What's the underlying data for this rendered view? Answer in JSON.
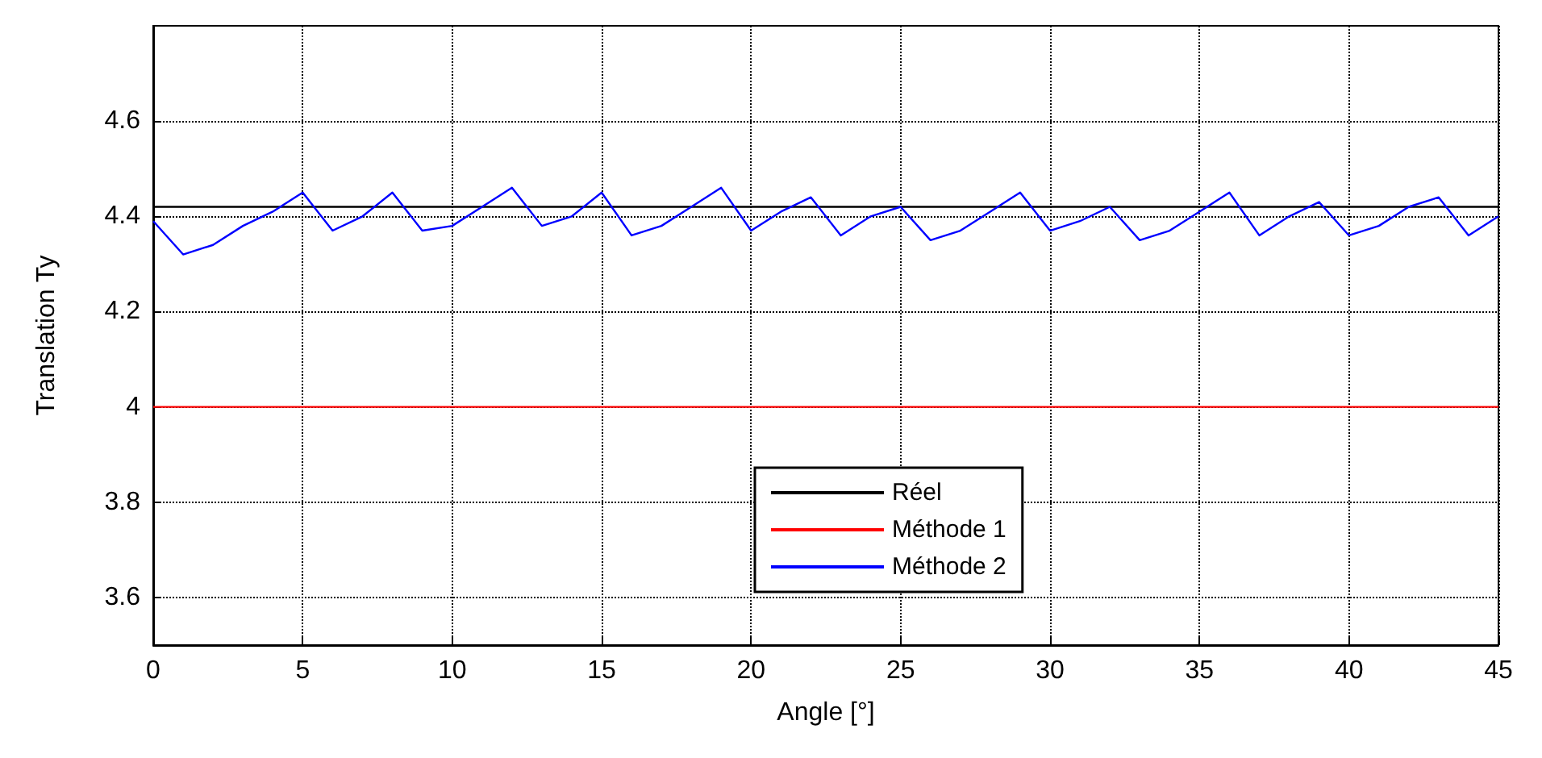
{
  "chart_data": {
    "type": "line",
    "xlabel": "Angle [°]",
    "ylabel": "Translation Ty",
    "xlim": [
      0,
      45
    ],
    "xticks": [
      0,
      5,
      10,
      15,
      20,
      25,
      30,
      35,
      40,
      45
    ],
    "ylim": [
      3.5,
      4.8
    ],
    "yticks": [
      3.6,
      3.8,
      4,
      4.2,
      4.4,
      4.6
    ],
    "grid": true,
    "legend": "bottom",
    "marker": "none",
    "series": [
      {
        "name": "Réel",
        "color": "#000000",
        "x": [
          0,
          45
        ],
        "values": [
          4.42,
          4.42
        ]
      },
      {
        "name": "Méthode 1",
        "color": "#ff0000",
        "x": [
          0,
          45
        ],
        "values": [
          4.0,
          4.0
        ]
      },
      {
        "name": "Méthode 2",
        "color": "#0000ff",
        "x": [
          0,
          1,
          2,
          3,
          4,
          5,
          6,
          7,
          8,
          9,
          10,
          11,
          12,
          13,
          14,
          15,
          16,
          17,
          18,
          19,
          20,
          21,
          22,
          23,
          24,
          25,
          26,
          27,
          28,
          29,
          30,
          31,
          32,
          33,
          34,
          35,
          36,
          37,
          38,
          39,
          40,
          41,
          42,
          43,
          44,
          45
        ],
        "values": [
          4.39,
          4.32,
          4.34,
          4.38,
          4.41,
          4.45,
          4.37,
          4.4,
          4.45,
          4.37,
          4.38,
          4.42,
          4.46,
          4.38,
          4.4,
          4.45,
          4.36,
          4.38,
          4.42,
          4.46,
          4.37,
          4.41,
          4.44,
          4.36,
          4.4,
          4.42,
          4.35,
          4.37,
          4.41,
          4.45,
          4.37,
          4.39,
          4.42,
          4.35,
          4.37,
          4.41,
          4.45,
          4.36,
          4.4,
          4.43,
          4.36,
          4.38,
          4.42,
          4.44,
          4.36,
          4.4
        ]
      }
    ]
  }
}
